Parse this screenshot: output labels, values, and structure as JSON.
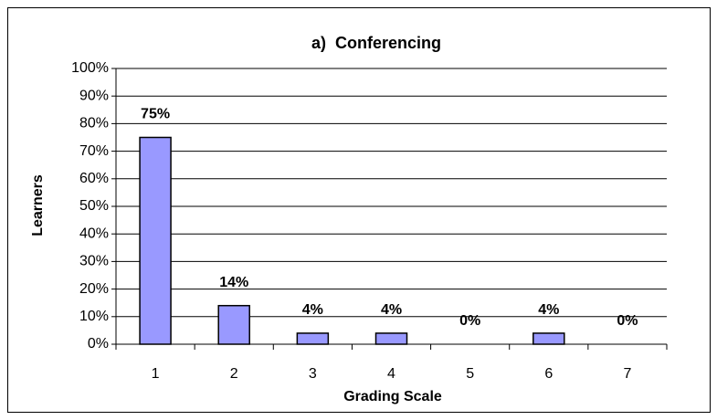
{
  "chart_data": {
    "type": "bar",
    "title": "a)  Conferencing",
    "x_label": "Grading Scale",
    "y_label": "Learners",
    "categories": [
      "1",
      "2",
      "3",
      "4",
      "5",
      "6",
      "7"
    ],
    "values": [
      75,
      14,
      4,
      4,
      0,
      4,
      0
    ],
    "value_labels": [
      "75%",
      "14%",
      "4%",
      "4%",
      "0%",
      "4%",
      "0%"
    ],
    "color": "#9999ff",
    "ylim": [
      0,
      100
    ],
    "yticks": [
      {
        "value": 0,
        "label": "0%"
      },
      {
        "value": 10,
        "label": "10%"
      },
      {
        "value": 20,
        "label": "20%"
      },
      {
        "value": 30,
        "label": "30%"
      },
      {
        "value": 40,
        "label": "40%"
      },
      {
        "value": 50,
        "label": "50%"
      },
      {
        "value": 60,
        "label": "60%"
      },
      {
        "value": 70,
        "label": "70%"
      },
      {
        "value": 80,
        "label": "80%"
      },
      {
        "value": 90,
        "label": "90%"
      },
      {
        "value": 100,
        "label": "100%"
      }
    ],
    "grid": true
  }
}
